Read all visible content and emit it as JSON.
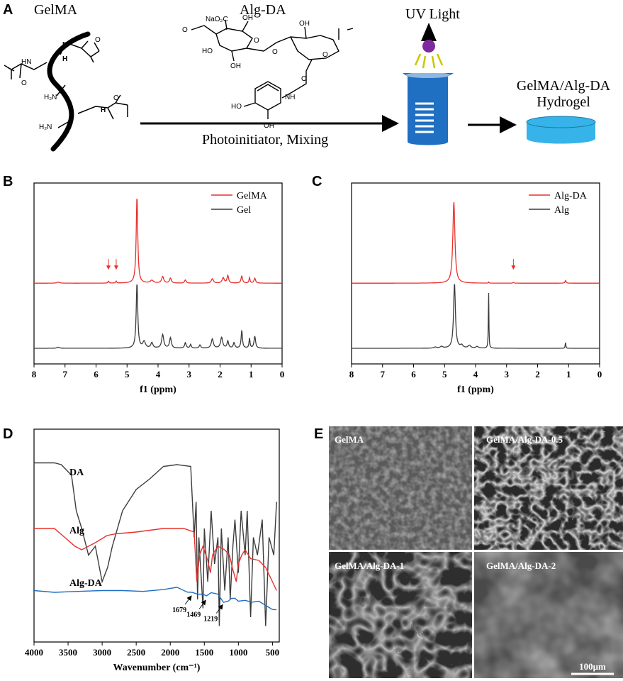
{
  "panels": {
    "A": {
      "letter": "A",
      "gelma_label": "GelMA",
      "algda_label": "Alg-DA",
      "uv_label": "UV Light",
      "process_label": "Photoinitiator, Mixing",
      "product_line1": "GelMA/Alg-DA",
      "product_line2": "Hydrogel",
      "chem": {
        "hn": "HN",
        "n": "N",
        "h": "H",
        "nh2_a": "H₂N",
        "nh2_b": "H₂N",
        "nh_amide": "H",
        "n_amide": "N",
        "nao2c": "NaO₂C",
        "oh1": "OH",
        "oh2": "OH",
        "oh3": "HO",
        "oh4": "OH",
        "o1": "O",
        "o2": "O",
        "o3": "O",
        "o4": "O",
        "o_ring": "O",
        "o_link": "O",
        "nh_da": "NH",
        "ho_cat": "HO",
        "oh_cat": "OH",
        "o_amide": "O",
        "o_me": "O"
      },
      "colors": {
        "beaker": "#1f6fc2",
        "hydrogel": "#36b3e8",
        "uv_bulb": "#7d2a9e",
        "uv_rays": "#c8c800"
      }
    },
    "B": {
      "letter": "B"
    },
    "C": {
      "letter": "C"
    },
    "D": {
      "letter": "D"
    },
    "E": {
      "letter": "E",
      "images": [
        {
          "label": "GelMA"
        },
        {
          "label": "GelMA/Alg-DA-0.5"
        },
        {
          "label": "GelMA/Alg-DA-1"
        },
        {
          "label": "GelMA/Alg-DA-2"
        }
      ],
      "scale_bar": "100μm"
    }
  },
  "chart_data": [
    {
      "panel": "B",
      "type": "line",
      "xlabel": "f1 (ppm)",
      "xlim": [
        8,
        0
      ],
      "xticks": [
        "8",
        "7",
        "6",
        "5",
        "4",
        "3",
        "2",
        "1",
        "0"
      ],
      "legend": "top-right",
      "series": [
        {
          "name": "GelMA",
          "color": "#e8302b",
          "baseline": 0.6,
          "peaks": [
            [
              7.22,
              0.02,
              0.05
            ],
            [
              5.6,
              0.035,
              0.02
            ],
            [
              5.35,
              0.035,
              0.02
            ],
            [
              4.68,
              1.6,
              0.03
            ],
            [
              4.2,
              0.05,
              0.06
            ],
            [
              3.85,
              0.12,
              0.04
            ],
            [
              3.6,
              0.09,
              0.035
            ],
            [
              3.12,
              0.06,
              0.03
            ],
            [
              2.25,
              0.08,
              0.04
            ],
            [
              1.9,
              0.1,
              0.04
            ],
            [
              1.75,
              0.14,
              0.03
            ],
            [
              1.3,
              0.13,
              0.03
            ],
            [
              1.05,
              0.1,
              0.02
            ],
            [
              0.88,
              0.09,
              0.03
            ]
          ],
          "markers_ppm": [
            5.6,
            5.35
          ]
        },
        {
          "name": "Gel",
          "color": "#3c3c3c",
          "baseline": 0.0,
          "peaks": [
            [
              7.22,
              0.02,
              0.05
            ],
            [
              4.68,
              1.2,
              0.03
            ],
            [
              4.45,
              0.12,
              0.05
            ],
            [
              4.2,
              0.1,
              0.04
            ],
            [
              3.85,
              0.25,
              0.04
            ],
            [
              3.6,
              0.19,
              0.035
            ],
            [
              3.12,
              0.1,
              0.03
            ],
            [
              2.95,
              0.07,
              0.025
            ],
            [
              2.65,
              0.06,
              0.03
            ],
            [
              2.25,
              0.17,
              0.04
            ],
            [
              1.95,
              0.2,
              0.04
            ],
            [
              1.75,
              0.13,
              0.03
            ],
            [
              1.55,
              0.1,
              0.03
            ],
            [
              1.3,
              0.33,
              0.025
            ],
            [
              1.05,
              0.18,
              0.02
            ],
            [
              0.88,
              0.22,
              0.03
            ]
          ]
        }
      ]
    },
    {
      "panel": "C",
      "type": "line",
      "xlabel": "f1 (ppm)",
      "xlim": [
        8,
        0
      ],
      "xticks": [
        "8",
        "7",
        "6",
        "5",
        "4",
        "3",
        "2",
        "1",
        "0"
      ],
      "legend": "top-right",
      "series": [
        {
          "name": "Alg-DA",
          "color": "#e8302b",
          "baseline": 0.6,
          "peaks": [
            [
              4.7,
              1.5,
              0.04
            ],
            [
              3.58,
              0.02,
              0.01
            ],
            [
              2.78,
              0.012,
              0.02
            ],
            [
              1.1,
              0.05,
              0.02
            ]
          ],
          "markers_ppm": [
            2.78
          ]
        },
        {
          "name": "Alg",
          "color": "#3c3c3c",
          "baseline": 0.0,
          "peaks": [
            [
              5.3,
              0.02,
              0.05
            ],
            [
              5.1,
              0.03,
              0.05
            ],
            [
              4.68,
              1.2,
              0.035
            ],
            [
              4.45,
              0.05,
              0.05
            ],
            [
              4.2,
              0.05,
              0.05
            ],
            [
              3.95,
              0.03,
              0.05
            ],
            [
              3.58,
              1.1,
              0.01
            ],
            [
              1.1,
              0.11,
              0.012
            ]
          ]
        }
      ]
    },
    {
      "panel": "D",
      "type": "line",
      "xlabel": "Wavenumber (cm⁻¹)",
      "xlim": [
        4000,
        400
      ],
      "xticks": [
        "4000",
        "3500",
        "3000",
        "2500",
        "2000",
        "1500",
        "1000",
        "500"
      ],
      "series": [
        {
          "name": "DA",
          "color": "#3c3c3c",
          "offset": 0,
          "points": [
            [
              4000,
              0.97
            ],
            [
              3700,
              0.97
            ],
            [
              3600,
              0.96
            ],
            [
              3450,
              0.9
            ],
            [
              3380,
              0.7
            ],
            [
              3300,
              0.6
            ],
            [
              3200,
              0.45
            ],
            [
              3100,
              0.5
            ],
            [
              3000,
              0.3
            ],
            [
              2920,
              0.38
            ],
            [
              2850,
              0.5
            ],
            [
              2700,
              0.7
            ],
            [
              2500,
              0.82
            ],
            [
              2300,
              0.88
            ],
            [
              2100,
              0.95
            ],
            [
              1900,
              0.96
            ],
            [
              1700,
              0.95
            ],
            [
              1650,
              0.55
            ],
            [
              1620,
              0.75
            ],
            [
              1600,
              0.2
            ],
            [
              1580,
              0.55
            ],
            [
              1520,
              0.15
            ],
            [
              1500,
              0.6
            ],
            [
              1450,
              0.3
            ],
            [
              1400,
              0.7
            ],
            [
              1350,
              0.4
            ],
            [
              1300,
              0.55
            ],
            [
              1280,
              0.05
            ],
            [
              1250,
              0.6
            ],
            [
              1200,
              0.25
            ],
            [
              1150,
              0.55
            ],
            [
              1120,
              0.2
            ],
            [
              1080,
              0.5
            ],
            [
              1050,
              0.65
            ],
            [
              1000,
              0.35
            ],
            [
              960,
              0.7
            ],
            [
              900,
              0.45
            ],
            [
              870,
              0.7
            ],
            [
              820,
              0.1
            ],
            [
              780,
              0.55
            ],
            [
              720,
              0.45
            ],
            [
              650,
              0.65
            ],
            [
              600,
              0.05
            ],
            [
              550,
              0.55
            ],
            [
              480,
              0.45
            ],
            [
              440,
              0.75
            ]
          ]
        },
        {
          "name": "Alg",
          "color": "#e8302b",
          "offset": 0,
          "points": [
            [
              4000,
              0.6
            ],
            [
              3700,
              0.6
            ],
            [
              3550,
              0.55
            ],
            [
              3400,
              0.5
            ],
            [
              3300,
              0.48
            ],
            [
              3100,
              0.52
            ],
            [
              2930,
              0.56
            ],
            [
              2800,
              0.57
            ],
            [
              2500,
              0.58
            ],
            [
              2300,
              0.59
            ],
            [
              2100,
              0.6
            ],
            [
              1800,
              0.6
            ],
            [
              1650,
              0.58
            ],
            [
              1610,
              0.3
            ],
            [
              1570,
              0.45
            ],
            [
              1520,
              0.5
            ],
            [
              1450,
              0.42
            ],
            [
              1410,
              0.35
            ],
            [
              1380,
              0.45
            ],
            [
              1300,
              0.5
            ],
            [
              1200,
              0.48
            ],
            [
              1130,
              0.45
            ],
            [
              1090,
              0.38
            ],
            [
              1030,
              0.3
            ],
            [
              1000,
              0.4
            ],
            [
              950,
              0.45
            ],
            [
              900,
              0.48
            ],
            [
              820,
              0.43
            ],
            [
              700,
              0.42
            ],
            [
              600,
              0.38
            ],
            [
              500,
              0.3
            ],
            [
              440,
              0.25
            ]
          ]
        },
        {
          "name": "Alg-DA",
          "color": "#1f6fc2",
          "offset": 0,
          "points": [
            [
              4000,
              0.25
            ],
            [
              3700,
              0.24
            ],
            [
              3400,
              0.245
            ],
            [
              3000,
              0.25
            ],
            [
              2700,
              0.25
            ],
            [
              2400,
              0.255
            ],
            [
              2100,
              0.265
            ],
            [
              1900,
              0.26
            ],
            [
              1750,
              0.25
            ],
            [
              1679,
              0.24
            ],
            [
              1600,
              0.22
            ],
            [
              1520,
              0.24
            ],
            [
              1469,
              0.215
            ],
            [
              1400,
              0.24
            ],
            [
              1300,
              0.22
            ],
            [
              1219,
              0.19
            ],
            [
              1150,
              0.2
            ],
            [
              1100,
              0.21
            ],
            [
              1050,
              0.2
            ],
            [
              1000,
              0.18
            ],
            [
              900,
              0.2
            ],
            [
              800,
              0.19
            ],
            [
              700,
              0.18
            ],
            [
              600,
              0.17
            ],
            [
              500,
              0.15
            ],
            [
              440,
              0.14
            ]
          ]
        }
      ],
      "annotations": [
        {
          "x": 1679,
          "label": "1679"
        },
        {
          "x": 1469,
          "label": "1469"
        },
        {
          "x": 1219,
          "label": "1219"
        }
      ]
    }
  ]
}
